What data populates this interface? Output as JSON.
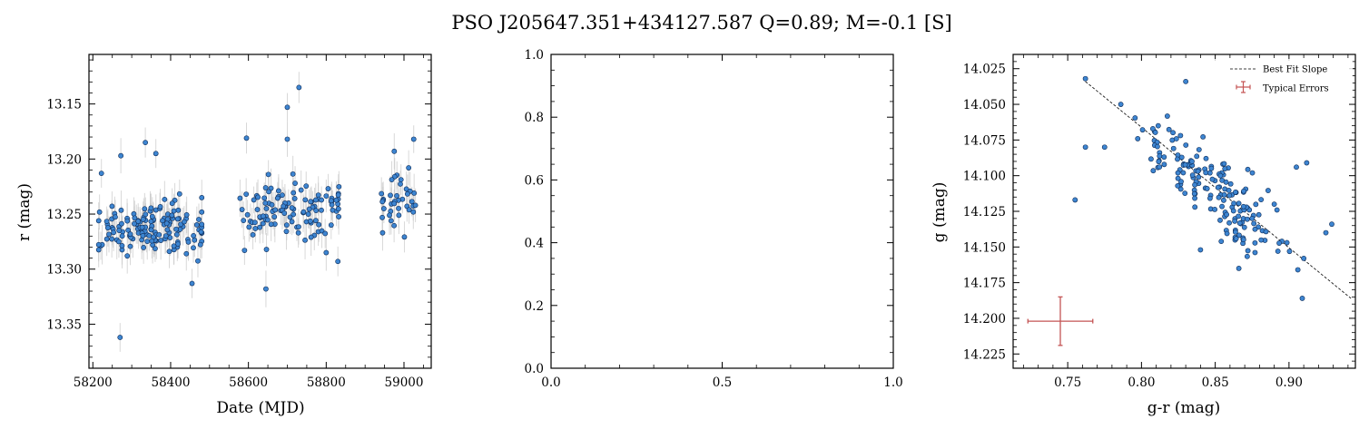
{
  "figure": {
    "title": "PSO J205647.351+434127.587  Q=0.89; M=-0.1 [S]",
    "colors": {
      "point": "#3d85d1",
      "point_edge": "#0d2a55",
      "errorbar": "#c8c8c8",
      "typical_error": "#c45454",
      "fit_line": "#000000"
    }
  },
  "chart_data": [
    {
      "type": "scatter",
      "xlabel": "Date (MJD)",
      "ylabel": "r (mag)",
      "xlim": [
        58190,
        59070
      ],
      "ylim": [
        13.39,
        13.105
      ],
      "y_inverted": true,
      "xticks": [
        58200,
        58400,
        58600,
        58800,
        59000
      ],
      "yticks": [
        13.15,
        13.2,
        13.25,
        13.3,
        13.35
      ],
      "xtick_labels": [
        "58200",
        "58400",
        "58600",
        "58800",
        "59000"
      ],
      "ytick_labels": [
        "13.15",
        "13.20",
        "13.25",
        "13.30",
        "13.35"
      ],
      "error_bar_color": "light gray",
      "clusters": [
        {
          "x_range": [
            58215,
            58480
          ],
          "mean_mag": 13.262,
          "spread": 0.022,
          "count": 150
        },
        {
          "x_range": [
            58575,
            58835
          ],
          "mean_mag": 13.245,
          "spread": 0.025,
          "count": 110
        },
        {
          "x_range": [
            58940,
            59030
          ],
          "mean_mag": 13.24,
          "spread": 0.022,
          "count": 35
        }
      ],
      "points": [
        [
          58222,
          13.213
        ],
        [
          58270,
          13.362
        ],
        [
          58272,
          13.197
        ],
        [
          58335,
          13.185
        ],
        [
          58362,
          13.195
        ],
        [
          58455,
          13.313
        ],
        [
          58595,
          13.181
        ],
        [
          58645,
          13.318
        ],
        [
          58700,
          13.153
        ],
        [
          58730,
          13.135
        ],
        [
          58700,
          13.182
        ],
        [
          58720,
          13.222
        ],
        [
          58830,
          13.293
        ],
        [
          58945,
          13.267
        ],
        [
          58975,
          13.193
        ],
        [
          59012,
          13.208
        ],
        [
          59025,
          13.182
        ],
        [
          58590,
          13.283
        ],
        [
          58800,
          13.285
        ]
      ]
    },
    {
      "type": "scatter",
      "empty": true,
      "xlim": [
        0.0,
        1.0
      ],
      "ylim": [
        0.0,
        1.0
      ],
      "xticks": [
        0.0,
        0.5,
        1.0
      ],
      "yticks": [
        0.0,
        0.2,
        0.4,
        0.6,
        0.8,
        1.0
      ],
      "xtick_labels": [
        "0.0",
        "0.5",
        "1.0"
      ],
      "ytick_labels": [
        "0.0",
        "0.2",
        "0.4",
        "0.6",
        "0.8",
        "1.0"
      ]
    },
    {
      "type": "scatter",
      "xlabel": "g-r (mag)",
      "ylabel": "g (mag)",
      "xlim": [
        0.713,
        0.945
      ],
      "ylim": [
        14.235,
        14.015
      ],
      "y_inverted": true,
      "xticks": [
        0.75,
        0.8,
        0.85,
        0.9
      ],
      "yticks": [
        14.025,
        14.05,
        14.075,
        14.1,
        14.125,
        14.15,
        14.175,
        14.2,
        14.225
      ],
      "xtick_labels": [
        "0.75",
        "0.80",
        "0.85",
        "0.90"
      ],
      "ytick_labels": [
        "14.025",
        "14.050",
        "14.075",
        "14.100",
        "14.125",
        "14.150",
        "14.175",
        "14.200",
        "14.225"
      ],
      "legend": {
        "position": "top-right",
        "entries": [
          "Best Fit Slope",
          "Typical Errors"
        ]
      },
      "fit_line": {
        "x": [
          0.762,
          0.942
        ],
        "y": [
          14.034,
          14.186
        ]
      },
      "typical_error": {
        "x": 0.745,
        "y": 14.202,
        "x_err": 0.022,
        "y_err": 0.017
      },
      "cluster": {
        "center": [
          0.848,
          14.108
        ],
        "slope": 0.84,
        "spread": 0.014,
        "count": 170
      },
      "points": [
        [
          0.762,
          14.032
        ],
        [
          0.83,
          14.034
        ],
        [
          0.755,
          14.117
        ],
        [
          0.762,
          14.08
        ],
        [
          0.775,
          14.08
        ],
        [
          0.786,
          14.05
        ],
        [
          0.912,
          14.091
        ],
        [
          0.905,
          14.094
        ],
        [
          0.925,
          14.14
        ],
        [
          0.929,
          14.134
        ],
        [
          0.91,
          14.158
        ],
        [
          0.906,
          14.166
        ],
        [
          0.909,
          14.186
        ],
        [
          0.866,
          14.165
        ],
        [
          0.84,
          14.152
        ],
        [
          0.89,
          14.12
        ],
        [
          0.875,
          14.13
        ]
      ]
    }
  ]
}
